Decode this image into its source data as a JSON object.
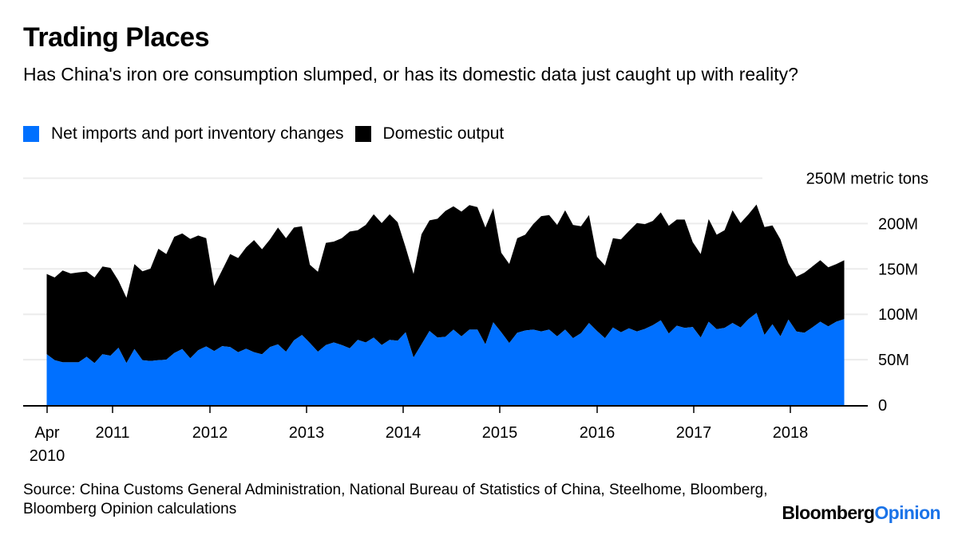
{
  "header": {
    "title": "Trading Places",
    "subtitle": "Has China's iron ore consumption slumped, or has its domestic data just caught up with reality?"
  },
  "footer": {
    "source": "Source: China Customs General Administration, National Bureau of Statistics of China, Steelhome, Bloomberg, Bloomberg Opinion calculations",
    "brand_part1": "Bloomberg",
    "brand_part2": "Opinion"
  },
  "colors": {
    "net_imports": "#0070ff",
    "domestic": "#000000",
    "grid": "#ececec",
    "brand_accent": "#1a73e8"
  },
  "chart_data": {
    "type": "area",
    "stacked": true,
    "title": "Trading Places",
    "subtitle": "Has China's iron ore consumption slumped, or has its domestic data just caught up with reality?",
    "xlabel": "",
    "ylabel": "metric tons",
    "x_start": "2010-04",
    "x_end": "2018-08",
    "frequency": "monthly",
    "ylim": [
      0,
      250
    ],
    "y_ticks": [
      {
        "value": 0,
        "label": "0"
      },
      {
        "value": 50,
        "label": "50M"
      },
      {
        "value": 100,
        "label": "100M"
      },
      {
        "value": 150,
        "label": "150M"
      },
      {
        "value": 200,
        "label": "200M"
      },
      {
        "value": 250,
        "label": "250M metric tons"
      }
    ],
    "x_ticks": [
      {
        "month_index": 0,
        "label": "Apr",
        "label2": "2010"
      },
      {
        "month_index": 9,
        "label": "2011",
        "label2": ""
      },
      {
        "month_index": 21,
        "label": "2012",
        "label2": ""
      },
      {
        "month_index": 33,
        "label": "2013",
        "label2": ""
      },
      {
        "month_index": 45,
        "label": "2014",
        "label2": ""
      },
      {
        "month_index": 57,
        "label": "2015",
        "label2": ""
      },
      {
        "month_index": 69,
        "label": "2016",
        "label2": ""
      },
      {
        "month_index": 81,
        "label": "2017",
        "label2": ""
      },
      {
        "month_index": 93,
        "label": "2018",
        "label2": ""
      }
    ],
    "grid": true,
    "legend_position": "top-left",
    "series": [
      {
        "name": "Net imports and port inventory changes",
        "color": "#0070ff",
        "values": [
          56,
          49.4,
          47.1,
          47.1,
          47.1,
          53.2,
          46.2,
          56.1,
          54.4,
          63.2,
          46.2,
          61.7,
          49.4,
          48.5,
          49.4,
          50,
          57.3,
          61.7,
          51.5,
          60.5,
          64.6,
          59.6,
          64.9,
          64,
          58.2,
          62,
          58.2,
          55.9,
          64,
          66.9,
          58.8,
          71.3,
          77.2,
          68.4,
          58.8,
          66.1,
          69,
          66.1,
          62.5,
          71.9,
          69,
          74.3,
          66.1,
          71.9,
          70.8,
          80.1,
          52.4,
          66.9,
          81.6,
          74.3,
          75.2,
          83.1,
          75.7,
          83.1,
          83.1,
          66.9,
          91.2,
          80.1,
          68.4,
          79.6,
          82.2,
          83.1,
          81,
          83.1,
          75.7,
          83.1,
          73.7,
          79.2,
          90.4,
          81.6,
          73.7,
          85.4,
          80.1,
          84.5,
          81,
          83.9,
          88,
          93.3,
          78.7,
          87.4,
          85.1,
          86,
          74.3,
          91.8,
          83.6,
          85.1,
          90.4,
          85.4,
          94.7,
          101.5,
          77.2,
          88.9,
          75.7,
          94.1,
          81,
          79.6,
          85.4,
          91.8,
          86.6,
          91.8,
          94.7
        ]
      },
      {
        "name": "Domestic output",
        "color": "#000000",
        "values": [
          88.5,
          91.2,
          101.1,
          97.9,
          99.1,
          93.9,
          94.4,
          96.5,
          96.7,
          73.9,
          72,
          93.6,
          98,
          101.8,
          122.8,
          116.4,
          128.1,
          127.5,
          131.6,
          126.3,
          119.3,
          71.7,
          83.9,
          102.4,
          103.8,
          111.7,
          123.6,
          115.8,
          118.5,
          128.7,
          125.1,
          124.3,
          119.9,
          86.2,
          88,
          112.6,
          111.1,
          117.8,
          128.7,
          120.8,
          129.5,
          135.9,
          134.5,
          138.3,
          130.7,
          93.6,
          92.1,
          121.4,
          121.9,
          131,
          138.8,
          135.9,
          137.5,
          137.3,
          135,
          128.7,
          125.7,
          87.7,
          87.1,
          104.3,
          105.5,
          116.3,
          127.2,
          126.3,
          122.8,
          131.5,
          124.8,
          117.9,
          119,
          81.8,
          80.1,
          98.5,
          102.4,
          107.3,
          119.6,
          115.5,
          114.9,
          119,
          118.9,
          117,
          119.3,
          93.6,
          92.1,
          113.2,
          104.1,
          107.6,
          124.2,
          115.2,
          115.5,
          119.5,
          119,
          109.1,
          106.8,
          62,
          60.5,
          66.3,
          67.2,
          67.8,
          65.2,
          63.5,
          64.9
        ]
      }
    ]
  },
  "legend": [
    {
      "label": "Net imports and port inventory changes",
      "color": "#0070ff"
    },
    {
      "label": "Domestic output",
      "color": "#000000"
    }
  ]
}
